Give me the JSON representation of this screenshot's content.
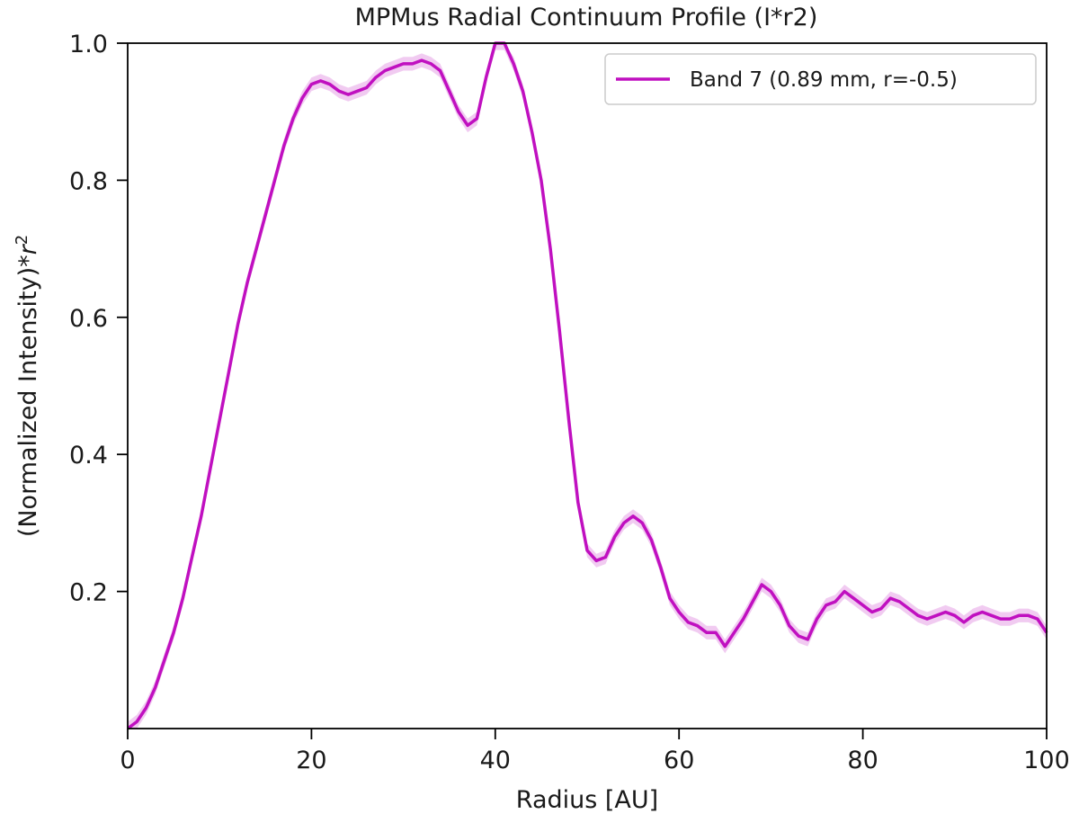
{
  "chart_data": {
    "type": "line",
    "title": "MPMus Radial Continuum Profile (I*r2)",
    "xlabel": "Radius [AU]",
    "ylabel_main": "(Normalized Intensity)*",
    "ylabel_var": "r",
    "ylabel_exp": "2",
    "xlim": [
      0,
      100
    ],
    "ylim": [
      0.0,
      1.0
    ],
    "x_ticks": [
      0,
      20,
      40,
      60,
      80,
      100
    ],
    "x_tick_labels": [
      "0",
      "20",
      "40",
      "60",
      "80",
      "100"
    ],
    "y_ticks": [
      0.2,
      0.4,
      0.6,
      0.8,
      1.0
    ],
    "y_tick_labels": [
      "0.2",
      "0.4",
      "0.6",
      "0.8",
      "1.0"
    ],
    "grid": false,
    "legend_position": "top-right",
    "series": [
      {
        "name": "Band 7 (0.89 mm, r=-0.5)",
        "color": "#c010c0",
        "band_color": "#e8a8e8",
        "x": [
          0,
          1,
          2,
          3,
          4,
          5,
          6,
          7,
          8,
          9,
          10,
          11,
          12,
          13,
          14,
          15,
          16,
          17,
          18,
          19,
          20,
          21,
          22,
          23,
          24,
          25,
          26,
          27,
          28,
          29,
          30,
          31,
          32,
          33,
          34,
          35,
          36,
          37,
          38,
          39,
          40,
          41,
          42,
          43,
          44,
          45,
          46,
          47,
          48,
          49,
          50,
          51,
          52,
          53,
          54,
          55,
          56,
          57,
          58,
          59,
          60,
          61,
          62,
          63,
          64,
          65,
          66,
          67,
          68,
          69,
          70,
          71,
          72,
          73,
          74,
          75,
          76,
          77,
          78,
          79,
          80,
          81,
          82,
          83,
          84,
          85,
          86,
          87,
          88,
          89,
          90,
          91,
          92,
          93,
          94,
          95,
          96,
          97,
          98,
          99,
          100
        ],
        "y": [
          0.0,
          0.01,
          0.03,
          0.06,
          0.1,
          0.14,
          0.19,
          0.25,
          0.31,
          0.38,
          0.45,
          0.52,
          0.59,
          0.65,
          0.7,
          0.75,
          0.8,
          0.85,
          0.89,
          0.92,
          0.94,
          0.945,
          0.94,
          0.93,
          0.925,
          0.93,
          0.935,
          0.95,
          0.96,
          0.965,
          0.97,
          0.97,
          0.975,
          0.97,
          0.96,
          0.93,
          0.9,
          0.88,
          0.89,
          0.95,
          1.0,
          1.0,
          0.97,
          0.93,
          0.87,
          0.8,
          0.7,
          0.58,
          0.45,
          0.33,
          0.26,
          0.245,
          0.25,
          0.28,
          0.3,
          0.31,
          0.3,
          0.275,
          0.235,
          0.19,
          0.17,
          0.155,
          0.15,
          0.14,
          0.14,
          0.12,
          0.14,
          0.16,
          0.185,
          0.21,
          0.2,
          0.18,
          0.15,
          0.135,
          0.13,
          0.16,
          0.18,
          0.185,
          0.2,
          0.19,
          0.18,
          0.17,
          0.175,
          0.19,
          0.185,
          0.175,
          0.165,
          0.16,
          0.165,
          0.17,
          0.165,
          0.155,
          0.165,
          0.17,
          0.165,
          0.16,
          0.16,
          0.165,
          0.165,
          0.16,
          0.14
        ],
        "uncertainty": 0.01
      }
    ]
  }
}
